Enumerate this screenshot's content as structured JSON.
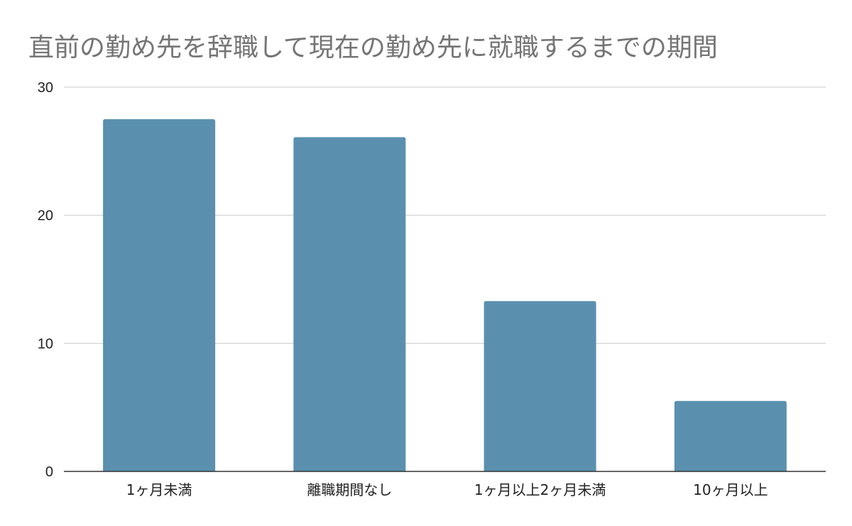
{
  "chart_data": {
    "type": "bar",
    "title": "直前の勤め先を辞職して現在の勤め先に就職するまでの期間",
    "xlabel": "",
    "ylabel": "",
    "categories": [
      "1ヶ月未満",
      "離職期間なし",
      "1ヶ月以上2ヶ月未満",
      "10ヶ月以上"
    ],
    "values": [
      27.5,
      26.1,
      13.3,
      5.5
    ],
    "ylim": [
      0,
      30
    ],
    "yticks": [
      0,
      10,
      20,
      30
    ],
    "grid": true,
    "legend": "none"
  },
  "colors": {
    "bar": "#5a90ae",
    "grid": "#cccccc",
    "axis": "#333333",
    "title": "#757575"
  }
}
